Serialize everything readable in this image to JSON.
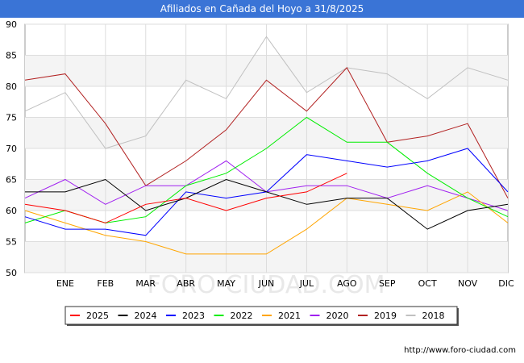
{
  "title": "Afiliados en Cañada del Hoyo a 31/8/2025",
  "watermark": "FORO-CIUDAD.COM",
  "footer": "http://www.foro-ciudad.com",
  "chart_data": {
    "type": "line",
    "title": "Afiliados en Cañada del Hoyo a 31/8/2025",
    "categories": [
      "",
      "ENE",
      "FEB",
      "MAR",
      "ABR",
      "MAY",
      "JUN",
      "JUL",
      "AGO",
      "SEP",
      "OCT",
      "NOV",
      "DIC"
    ],
    "ylim": [
      50,
      90
    ],
    "yticks": [
      50,
      55,
      60,
      65,
      70,
      75,
      80,
      85,
      90
    ],
    "grid": true,
    "legend_position": "bottom",
    "series": [
      {
        "name": "2025",
        "color": "#ff0000",
        "values": [
          61,
          60,
          58,
          61,
          62,
          60,
          62,
          63,
          66,
          null,
          null,
          null,
          null
        ]
      },
      {
        "name": "2024",
        "color": "#000000",
        "values": [
          63,
          63,
          65,
          60,
          62,
          65,
          63,
          61,
          62,
          62,
          57,
          60,
          61
        ]
      },
      {
        "name": "2023",
        "color": "#0000ff",
        "values": [
          59,
          57,
          57,
          56,
          63,
          62,
          63,
          69,
          68,
          67,
          68,
          70,
          63
        ]
      },
      {
        "name": "2022",
        "color": "#00ee00",
        "values": [
          58,
          60,
          58,
          59,
          64,
          66,
          70,
          75,
          71,
          71,
          66,
          62,
          59
        ]
      },
      {
        "name": "2021",
        "color": "#ffa500",
        "values": [
          60,
          58,
          56,
          55,
          53,
          53,
          53,
          57,
          62,
          61,
          60,
          63,
          58
        ]
      },
      {
        "name": "2020",
        "color": "#a020f0",
        "values": [
          62,
          65,
          61,
          64,
          64,
          68,
          63,
          64,
          64,
          62,
          64,
          62,
          60
        ]
      },
      {
        "name": "2019",
        "color": "#b22222",
        "values": [
          81,
          82,
          74,
          64,
          68,
          73,
          81,
          76,
          83,
          71,
          72,
          74,
          62
        ]
      },
      {
        "name": "2018",
        "color": "#c0c0c0",
        "values": [
          76,
          79,
          70,
          72,
          81,
          78,
          88,
          79,
          83,
          82,
          78,
          83,
          81
        ]
      }
    ]
  }
}
